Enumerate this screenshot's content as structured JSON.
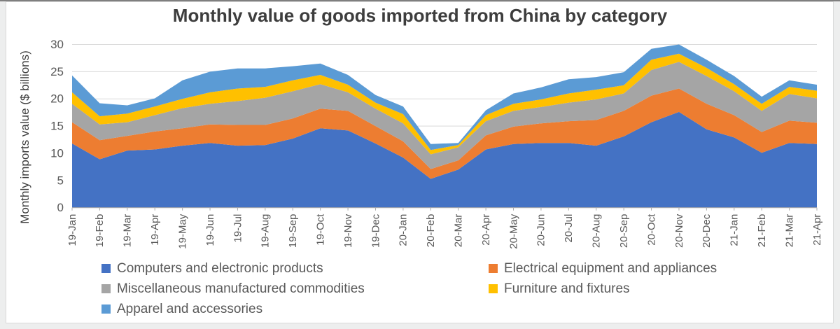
{
  "title": "Monthly value of goods imported from China by category",
  "y_axis_title": "Monthly imports value ($ billions)",
  "colors": {
    "page_background": "#edeeee",
    "panel_background": "#ffffff",
    "panel_border": "#d9d9d9",
    "top_strip": "#7f7f7f",
    "title_text": "#3d3d3d",
    "tick_label": "#595959",
    "gridline": "#d9d9d9",
    "axis_line": "#acacac"
  },
  "chart_data": {
    "type": "area",
    "stacked": true,
    "title": "Monthly value of goods imported from China by category",
    "xlabel": "",
    "ylabel": "Monthly imports value ($ billions)",
    "ylim": [
      0,
      30
    ],
    "y_ticks": [
      0,
      5,
      10,
      15,
      20,
      25,
      30
    ],
    "grid": true,
    "legend_position": "bottom",
    "legend_columns": 2,
    "x_label_rotation": -90,
    "categories": [
      "19-Jan",
      "19-Feb",
      "19-Mar",
      "19-Apr",
      "19-May",
      "19-Jun",
      "19-Jul",
      "19-Aug",
      "19-Sep",
      "19-Oct",
      "19-Nov",
      "19-Dec",
      "20-Jan",
      "20-Feb",
      "20-Mar",
      "20-Apr",
      "20-May",
      "20-Jun",
      "20-Jul",
      "20-Aug",
      "20-Sep",
      "20-Oct",
      "20-Nov",
      "20-Dec",
      "21-Jan",
      "21-Feb",
      "21-Mar",
      "21-Apr"
    ],
    "series": [
      {
        "name": "Computers and electronic products",
        "color": "#4472C4",
        "values": [
          11.8,
          8.9,
          10.5,
          10.7,
          11.4,
          11.9,
          11.4,
          11.5,
          12.7,
          14.6,
          14.2,
          11.8,
          9.2,
          5.3,
          7.0,
          10.7,
          11.7,
          11.9,
          11.9,
          11.4,
          13.1,
          15.7,
          17.6,
          14.4,
          12.9,
          10.1,
          11.9,
          11.7
        ]
      },
      {
        "name": "Electrical equipment and appliances",
        "color": "#ED7D31",
        "values": [
          3.9,
          3.5,
          2.7,
          3.3,
          3.2,
          3.4,
          3.8,
          3.7,
          3.7,
          3.6,
          3.6,
          3.2,
          3.0,
          1.8,
          1.7,
          2.6,
          3.2,
          3.6,
          4.0,
          4.7,
          4.7,
          4.9,
          4.3,
          4.7,
          4.1,
          3.8,
          4.1,
          3.9
        ]
      },
      {
        "name": "Miscellaneous manufactured commodities",
        "color": "#A5A5A5",
        "values": [
          3.4,
          2.9,
          2.5,
          3.0,
          3.7,
          3.8,
          4.4,
          5.0,
          5.0,
          4.5,
          3.4,
          3.2,
          3.3,
          2.7,
          2.4,
          2.6,
          2.9,
          3.0,
          3.4,
          3.8,
          3.2,
          4.7,
          4.9,
          5.1,
          4.4,
          3.9,
          4.9,
          4.5
        ]
      },
      {
        "name": "Furniture and fixtures",
        "color": "#FFC000",
        "values": [
          2.1,
          1.5,
          1.6,
          1.6,
          1.7,
          2.1,
          2.3,
          2.0,
          2.0,
          1.7,
          1.4,
          1.1,
          1.7,
          0.8,
          0.4,
          1.1,
          1.3,
          1.4,
          1.7,
          1.8,
          1.5,
          1.9,
          1.5,
          1.5,
          1.3,
          1.3,
          1.3,
          1.4
        ]
      },
      {
        "name": "Apparel and accessories",
        "color": "#5B9BD5",
        "values": [
          3.1,
          2.4,
          1.5,
          1.5,
          3.4,
          3.8,
          3.7,
          3.4,
          2.6,
          2.1,
          1.8,
          1.4,
          1.4,
          1.1,
          0.4,
          0.9,
          1.9,
          2.2,
          2.6,
          2.3,
          2.4,
          2.0,
          1.7,
          1.5,
          1.5,
          1.3,
          1.2,
          1.1
        ]
      }
    ]
  }
}
